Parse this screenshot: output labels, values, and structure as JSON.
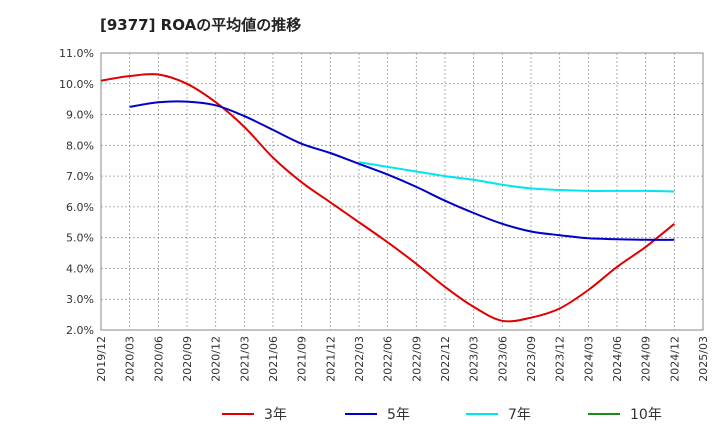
{
  "chart_data": {
    "type": "line",
    "title": "[9377]  ROAの平均値の推移",
    "xlabel": "",
    "ylabel": "",
    "ylim": [
      2.0,
      11.0
    ],
    "yticks": [
      2.0,
      3.0,
      4.0,
      5.0,
      6.0,
      7.0,
      8.0,
      9.0,
      10.0,
      11.0
    ],
    "ytick_labels": [
      "2.0%",
      "3.0%",
      "4.0%",
      "5.0%",
      "6.0%",
      "7.0%",
      "8.0%",
      "9.0%",
      "10.0%",
      "11.0%"
    ],
    "x_categories": [
      "2019/12",
      "2020/03",
      "2020/06",
      "2020/09",
      "2020/12",
      "2021/03",
      "2021/06",
      "2021/09",
      "2021/12",
      "2022/03",
      "2022/06",
      "2022/09",
      "2022/12",
      "2023/03",
      "2023/06",
      "2023/09",
      "2023/12",
      "2024/03",
      "2024/06",
      "2024/09",
      "2024/12",
      "2025/03"
    ],
    "grid": true,
    "legend_position": "bottom",
    "series": [
      {
        "name": "3年",
        "color": "#e00000",
        "values": [
          10.1,
          10.25,
          10.3,
          10.0,
          9.4,
          8.6,
          7.6,
          6.8,
          6.15,
          5.5,
          4.85,
          4.15,
          3.4,
          2.75,
          2.3,
          2.4,
          2.7,
          3.3,
          4.05,
          4.7,
          5.45,
          null
        ]
      },
      {
        "name": "5年",
        "color": "#0000c8",
        "values": [
          null,
          9.25,
          9.4,
          9.42,
          9.3,
          8.95,
          8.5,
          8.05,
          7.75,
          7.4,
          7.05,
          6.65,
          6.2,
          5.8,
          5.45,
          5.2,
          5.08,
          4.98,
          4.95,
          4.93,
          4.93,
          null
        ]
      },
      {
        "name": "7年",
        "color": "#00e5ee",
        "values": [
          null,
          null,
          null,
          null,
          null,
          null,
          null,
          null,
          null,
          7.45,
          7.3,
          7.15,
          7.0,
          6.88,
          6.72,
          6.6,
          6.55,
          6.52,
          6.52,
          6.52,
          6.5,
          null
        ]
      },
      {
        "name": "10年",
        "color": "#1a8c1a",
        "values": [
          null,
          null,
          null,
          null,
          null,
          null,
          null,
          null,
          null,
          null,
          null,
          null,
          null,
          null,
          null,
          null,
          null,
          null,
          null,
          null,
          null,
          null
        ]
      }
    ]
  }
}
